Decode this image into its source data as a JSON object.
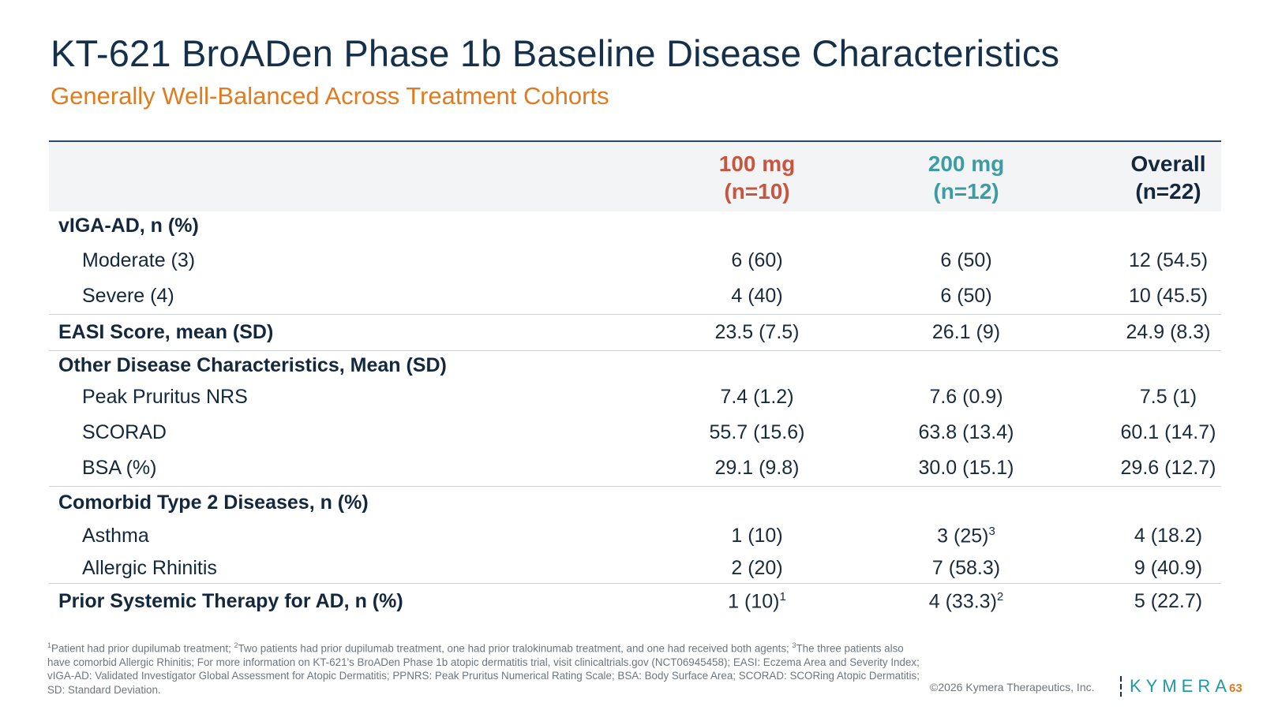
{
  "slide": {
    "title": "KT-621 BroADen Phase 1b Baseline Disease Characteristics",
    "subtitle": "Generally Well-Balanced Across Treatment Cohorts"
  },
  "columns": [
    {
      "line1": "100 mg",
      "line2": "(n=10)",
      "color": "#c8553d"
    },
    {
      "line1": "200 mg",
      "line2": "(n=12)",
      "color": "#3d9ca3"
    },
    {
      "line1": "Overall",
      "line2": "(n=22)",
      "color": "#14283d"
    }
  ],
  "rows": {
    "viga": {
      "label": "vIGA-AD, n (%)"
    },
    "moderate": {
      "label": "Moderate (3)",
      "v1": "6 (60)",
      "v2": "6 (50)",
      "v3": "12 (54.5)"
    },
    "severe": {
      "label": "Severe (4)",
      "v1": "4 (40)",
      "v2": "6 (50)",
      "v3": "10 (45.5)"
    },
    "easi": {
      "label": "EASI Score, mean (SD)",
      "v1": "23.5 (7.5)",
      "v2": "26.1 (9)",
      "v3": "24.9 (8.3)"
    },
    "other": {
      "label": "Other Disease Characteristics, Mean (SD)"
    },
    "pruritus": {
      "label": "Peak Pruritus NRS",
      "v1": "7.4 (1.2)",
      "v2": "7.6 (0.9)",
      "v3": "7.5 (1)"
    },
    "scorad": {
      "label": "SCORAD",
      "v1": "55.7 (15.6)",
      "v2": "63.8 (13.4)",
      "v3": "60.1 (14.7)"
    },
    "bsa": {
      "label": "BSA (%)",
      "v1": "29.1 (9.8)",
      "v2": "30.0 (15.1)",
      "v3": "29.6 (12.7)"
    },
    "comorbid": {
      "label": "Comorbid Type 2 Diseases, n (%)"
    },
    "asthma": {
      "label": "Asthma",
      "v1": "1 (10)",
      "v2": "3 (25)",
      "v2_sup": "3",
      "v3": "4 (18.2)"
    },
    "rhinitis": {
      "label": "Allergic Rhinitis",
      "v1": "2 (20)",
      "v2": "7 (58.3)",
      "v3": "9 (40.9)"
    },
    "prior": {
      "label": "Prior Systemic Therapy for AD, n (%)",
      "v1": "1 (10)",
      "v1_sup": "1",
      "v2": "4 (33.3)",
      "v2_sup": "2",
      "v3": "5 (22.7)"
    }
  },
  "footnote": {
    "s1": "1",
    "t1": "Patient had prior dupilumab treatment; ",
    "s2": "2",
    "t2": "Two patients had prior dupilumab treatment, one had prior tralokinumab treatment, and one had received both agents; ",
    "s3": "3",
    "t3": "The three patients also have comorbid Allergic Rhinitis; For more information on KT-621's BroADen Phase 1b atopic dermatitis trial, visit clinicaltrials.gov (NCT06945458); EASI: Eczema Area and Severity Index; vIGA-AD: Validated Investigator Global Assessment for Atopic Dermatitis; PPNRS: Peak Pruritus Numerical Rating Scale; BSA: Body Surface Area; SCORAD: SCORing Atopic Dermatitis; SD: Standard Deviation."
  },
  "footer": {
    "copyright": "©2026 Kymera Therapeutics, Inc.",
    "logo_text": "KYMERA",
    "page_number": "63"
  }
}
